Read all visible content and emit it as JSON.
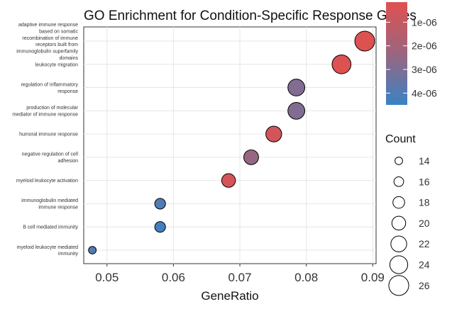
{
  "chart_data": {
    "type": "scatter",
    "title": "GO Enrichment for Condition-Specific Response Genes",
    "xlabel": "GeneRatio",
    "ylabel": "",
    "xlim": [
      0.0465,
      0.0905
    ],
    "xticks": [
      "0.05",
      "0.06",
      "0.07",
      "0.08",
      "0.09"
    ],
    "xtick_values": [
      0.05,
      0.06,
      0.07,
      0.08,
      0.09
    ],
    "grid": true,
    "points": [
      {
        "term_lines": [
          "adaptive immune response",
          "based on somatic",
          "recombination of immune",
          "receptors built from",
          "immunoglobulin superfamily",
          "domains"
        ],
        "gene_ratio": 0.0888,
        "count": 26,
        "p_adjust": 2e-07
      },
      {
        "term_lines": [
          "leukocyte migration"
        ],
        "gene_ratio": 0.0853,
        "count": 25,
        "p_adjust": 2e-07
      },
      {
        "term_lines": [
          "regulation of inflammatory",
          "response"
        ],
        "gene_ratio": 0.0785,
        "count": 23,
        "p_adjust": 2.9e-06
      },
      {
        "term_lines": [
          "production of molecular",
          "mediator of immune response"
        ],
        "gene_ratio": 0.0785,
        "count": 23,
        "p_adjust": 2.9e-06
      },
      {
        "term_lines": [
          "humoral immune response"
        ],
        "gene_ratio": 0.0751,
        "count": 22,
        "p_adjust": 6e-07
      },
      {
        "term_lines": [
          "negative regulation of cell",
          "adhesion"
        ],
        "gene_ratio": 0.0717,
        "count": 21,
        "p_adjust": 2.4e-06
      },
      {
        "term_lines": [
          "myeloid leukocyte activation"
        ],
        "gene_ratio": 0.0683,
        "count": 20,
        "p_adjust": 5e-07
      },
      {
        "term_lines": [
          "immunoglobulin mediated",
          "immune response"
        ],
        "gene_ratio": 0.058,
        "count": 17,
        "p_adjust": 4e-06
      },
      {
        "term_lines": [
          "B cell mediated immunity"
        ],
        "gene_ratio": 0.058,
        "count": 17,
        "p_adjust": 4.3e-06
      },
      {
        "term_lines": [
          "myeloid leukocyte mediated",
          "immunity"
        ],
        "gene_ratio": 0.0478,
        "count": 14,
        "p_adjust": 4e-06
      }
    ],
    "color_legend": {
      "ticks": [
        "1e-06",
        "2e-06",
        "3e-06",
        "4e-06"
      ],
      "tick_values": [
        1e-06,
        2e-06,
        3e-06,
        4e-06
      ],
      "range": [
        1.5e-07,
        4.5e-06
      ],
      "low_color": "#e05050",
      "high_color": "#3a82c4"
    },
    "size_legend": {
      "title": "Count",
      "values": [
        14,
        16,
        18,
        20,
        22,
        24,
        26
      ]
    }
  }
}
